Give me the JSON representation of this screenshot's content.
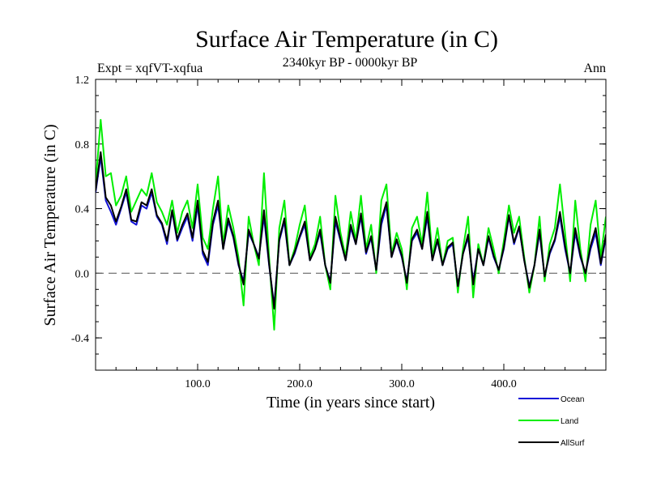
{
  "chart_data": {
    "type": "line",
    "title": "Surface Air Temperature (in C)",
    "subtitle": "2340kyr BP - 0000kyr BP",
    "left_label": "Expt = xqfVT-xqfua",
    "right_label": "Ann",
    "xlabel": "Time (in years since start)",
    "ylabel": "Surface Air Temperature (in C)",
    "xlim": [
      0,
      500
    ],
    "ylim": [
      -0.6,
      1.2
    ],
    "x_ticks": [
      100,
      200,
      300,
      400
    ],
    "x_tick_labels": [
      "100.0",
      "200.0",
      "300.0",
      "400.0"
    ],
    "y_ticks": [
      -0.4,
      0.0,
      0.4,
      0.8,
      1.2
    ],
    "y_tick_labels": [
      "-0.4",
      "0.0",
      "0.4",
      "0.8",
      "1.2"
    ],
    "reference_line": {
      "y": 0.0,
      "style": "dashed"
    },
    "legend_position": "bottom-right",
    "series": [
      {
        "name": "Land",
        "color": "#00ee00",
        "x": [
          0,
          5,
          10,
          15,
          20,
          25,
          30,
          35,
          40,
          45,
          50,
          55,
          60,
          65,
          70,
          75,
          80,
          85,
          90,
          95,
          100,
          105,
          110,
          115,
          120,
          125,
          130,
          135,
          140,
          145,
          150,
          155,
          160,
          165,
          170,
          175,
          180,
          185,
          190,
          195,
          200,
          205,
          210,
          215,
          220,
          225,
          230,
          235,
          240,
          245,
          250,
          255,
          260,
          265,
          270,
          275,
          280,
          285,
          290,
          295,
          300,
          305,
          310,
          315,
          320,
          325,
          330,
          335,
          340,
          345,
          350,
          355,
          360,
          365,
          370,
          375,
          380,
          385,
          390,
          395,
          400,
          405,
          410,
          415,
          420,
          425,
          430,
          435,
          440,
          445,
          450,
          455,
          460,
          465,
          470,
          475,
          480,
          485,
          490,
          495,
          500
        ],
        "values": [
          0.55,
          0.95,
          0.6,
          0.62,
          0.42,
          0.48,
          0.6,
          0.38,
          0.45,
          0.52,
          0.48,
          0.62,
          0.44,
          0.38,
          0.3,
          0.45,
          0.25,
          0.38,
          0.45,
          0.28,
          0.55,
          0.22,
          0.15,
          0.4,
          0.6,
          0.18,
          0.42,
          0.28,
          0.1,
          -0.2,
          0.35,
          0.18,
          0.05,
          0.62,
          0.1,
          -0.35,
          0.28,
          0.45,
          0.05,
          0.15,
          0.3,
          0.42,
          0.1,
          0.18,
          0.35,
          0.05,
          -0.1,
          0.48,
          0.25,
          0.1,
          0.38,
          0.2,
          0.48,
          0.15,
          0.3,
          0.0,
          0.45,
          0.55,
          0.12,
          0.25,
          0.15,
          -0.1,
          0.28,
          0.35,
          0.18,
          0.5,
          0.1,
          0.28,
          0.05,
          0.2,
          0.22,
          -0.12,
          0.15,
          0.35,
          -0.15,
          0.18,
          0.05,
          0.28,
          0.15,
          0.0,
          0.2,
          0.42,
          0.25,
          0.35,
          0.1,
          -0.12,
          0.05,
          0.35,
          -0.05,
          0.18,
          0.28,
          0.55,
          0.25,
          -0.05,
          0.45,
          0.15,
          -0.05,
          0.3,
          0.45,
          0.1,
          0.35
        ]
      },
      {
        "name": "Ocean",
        "color": "#1414d8",
        "x": [
          0,
          5,
          10,
          15,
          20,
          25,
          30,
          35,
          40,
          45,
          50,
          55,
          60,
          65,
          70,
          75,
          80,
          85,
          90,
          95,
          100,
          105,
          110,
          115,
          120,
          125,
          130,
          135,
          140,
          145,
          150,
          155,
          160,
          165,
          170,
          175,
          180,
          185,
          190,
          195,
          200,
          205,
          210,
          215,
          220,
          225,
          230,
          235,
          240,
          245,
          250,
          255,
          260,
          265,
          270,
          275,
          280,
          285,
          290,
          295,
          300,
          305,
          310,
          315,
          320,
          325,
          330,
          335,
          340,
          345,
          350,
          355,
          360,
          365,
          370,
          375,
          380,
          385,
          390,
          395,
          400,
          405,
          410,
          415,
          420,
          425,
          430,
          435,
          440,
          445,
          450,
          455,
          460,
          465,
          470,
          475,
          480,
          485,
          490,
          495,
          500
        ],
        "values": [
          0.5,
          0.72,
          0.45,
          0.38,
          0.3,
          0.4,
          0.5,
          0.32,
          0.3,
          0.42,
          0.4,
          0.5,
          0.35,
          0.3,
          0.18,
          0.38,
          0.2,
          0.28,
          0.35,
          0.2,
          0.42,
          0.12,
          0.05,
          0.3,
          0.42,
          0.15,
          0.32,
          0.22,
          0.05,
          -0.05,
          0.25,
          0.18,
          0.1,
          0.35,
          0.05,
          -0.2,
          0.2,
          0.32,
          0.05,
          0.12,
          0.22,
          0.3,
          0.08,
          0.15,
          0.25,
          0.05,
          -0.05,
          0.32,
          0.2,
          0.08,
          0.28,
          0.18,
          0.35,
          0.12,
          0.22,
          0.02,
          0.3,
          0.42,
          0.1,
          0.2,
          0.1,
          -0.05,
          0.2,
          0.25,
          0.15,
          0.35,
          0.08,
          0.2,
          0.05,
          0.15,
          0.18,
          -0.08,
          0.12,
          0.22,
          -0.05,
          0.15,
          0.05,
          0.22,
          0.1,
          0.02,
          0.15,
          0.35,
          0.18,
          0.28,
          0.08,
          -0.08,
          0.05,
          0.25,
          -0.02,
          0.12,
          0.2,
          0.35,
          0.15,
          0.0,
          0.25,
          0.1,
          0.0,
          0.15,
          0.25,
          0.05,
          0.22
        ]
      },
      {
        "name": "AllSurf",
        "color": "#000000",
        "x": [
          0,
          5,
          10,
          15,
          20,
          25,
          30,
          35,
          40,
          45,
          50,
          55,
          60,
          65,
          70,
          75,
          80,
          85,
          90,
          95,
          100,
          105,
          110,
          115,
          120,
          125,
          130,
          135,
          140,
          145,
          150,
          155,
          160,
          165,
          170,
          175,
          180,
          185,
          190,
          195,
          200,
          205,
          210,
          215,
          220,
          225,
          230,
          235,
          240,
          245,
          250,
          255,
          260,
          265,
          270,
          275,
          280,
          285,
          290,
          295,
          300,
          305,
          310,
          315,
          320,
          325,
          330,
          335,
          340,
          345,
          350,
          355,
          360,
          365,
          370,
          375,
          380,
          385,
          390,
          395,
          400,
          405,
          410,
          415,
          420,
          425,
          430,
          435,
          440,
          445,
          450,
          455,
          460,
          465,
          470,
          475,
          480,
          485,
          490,
          495,
          500
        ],
        "values": [
          0.51,
          0.75,
          0.47,
          0.42,
          0.32,
          0.41,
          0.52,
          0.33,
          0.32,
          0.44,
          0.42,
          0.52,
          0.36,
          0.31,
          0.2,
          0.39,
          0.21,
          0.3,
          0.37,
          0.22,
          0.45,
          0.14,
          0.07,
          0.32,
          0.45,
          0.15,
          0.34,
          0.23,
          0.06,
          -0.07,
          0.27,
          0.18,
          0.09,
          0.39,
          0.06,
          -0.22,
          0.21,
          0.34,
          0.05,
          0.13,
          0.23,
          0.32,
          0.08,
          0.15,
          0.27,
          0.05,
          -0.06,
          0.35,
          0.21,
          0.08,
          0.3,
          0.18,
          0.37,
          0.13,
          0.23,
          0.02,
          0.33,
          0.44,
          0.1,
          0.21,
          0.11,
          -0.06,
          0.21,
          0.27,
          0.15,
          0.38,
          0.08,
          0.21,
          0.05,
          0.16,
          0.19,
          -0.08,
          0.12,
          0.24,
          -0.07,
          0.15,
          0.05,
          0.23,
          0.11,
          0.02,
          0.16,
          0.36,
          0.19,
          0.29,
          0.08,
          -0.09,
          0.05,
          0.27,
          -0.02,
          0.13,
          0.21,
          0.38,
          0.17,
          0.0,
          0.28,
          0.11,
          0.0,
          0.17,
          0.28,
          0.06,
          0.24
        ]
      }
    ]
  }
}
